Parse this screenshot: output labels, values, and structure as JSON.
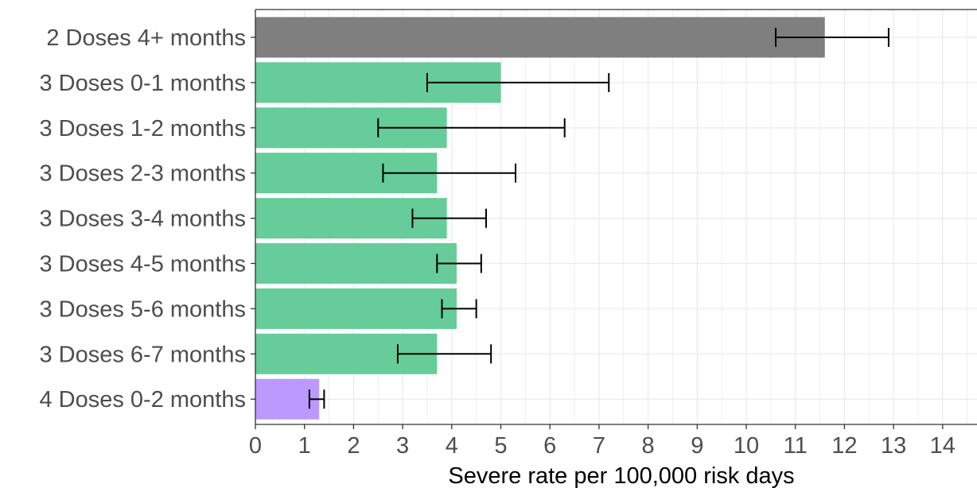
{
  "chart_data": {
    "type": "bar",
    "orientation": "horizontal",
    "categories": [
      "2 Doses 4+ months",
      "3 Doses 0-1 months",
      "3 Doses 1-2 months",
      "3 Doses 2-3 months",
      "3 Doses 3-4 months",
      "3 Doses 4-5 months",
      "3 Doses 5-6 months",
      "3 Doses 6-7 months",
      "4 Doses 0-2 months"
    ],
    "values": [
      11.6,
      5.0,
      3.9,
      3.7,
      3.9,
      4.1,
      4.1,
      3.7,
      1.3
    ],
    "ci_lower": [
      10.6,
      3.5,
      2.5,
      2.6,
      3.2,
      3.7,
      3.8,
      2.9,
      1.1
    ],
    "ci_upper": [
      12.9,
      7.2,
      6.3,
      5.3,
      4.7,
      4.6,
      4.5,
      4.8,
      1.4
    ],
    "bar_colors": [
      "#7f7f7f",
      "#66cc99",
      "#66cc99",
      "#66cc99",
      "#66cc99",
      "#66cc99",
      "#66cc99",
      "#66cc99",
      "#bb99ff"
    ],
    "title": "",
    "xlabel": "Severe rate per 100,000 risk days",
    "ylabel": "",
    "xlim": [
      0,
      14.7
    ],
    "xticks": [
      "0",
      "1",
      "2",
      "3",
      "4",
      "5",
      "6",
      "7",
      "8",
      "9",
      "10",
      "11",
      "12",
      "13",
      "14"
    ],
    "grid": true,
    "grid_color": "#ebebeb",
    "errorbar_color": "#000000",
    "legend": "none"
  }
}
